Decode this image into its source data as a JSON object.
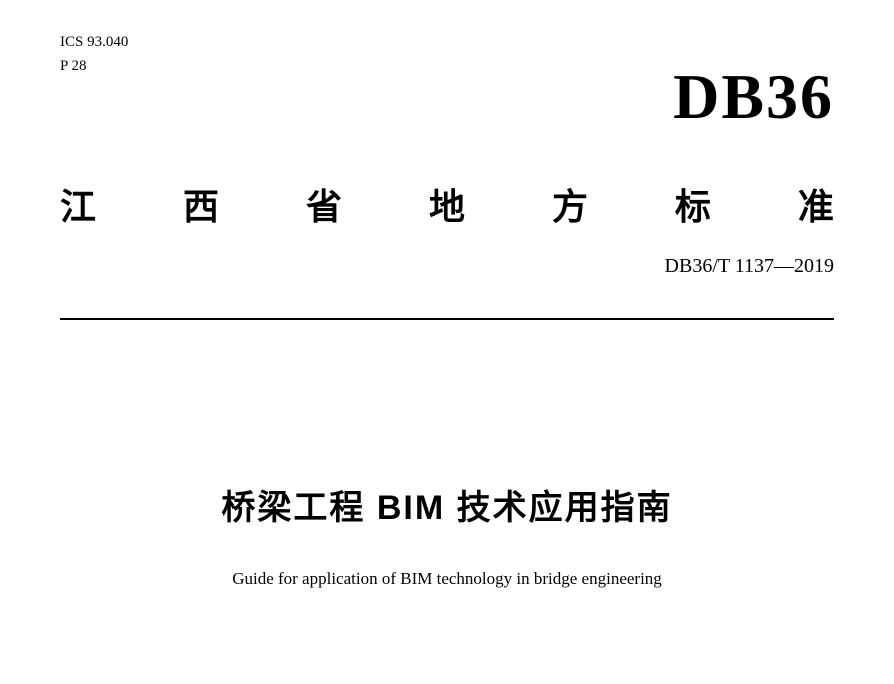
{
  "header": {
    "icsCode": "ICS 93.040",
    "pCode": "P 28"
  },
  "logo": {
    "text": "DB36"
  },
  "standardType": {
    "chars": [
      "江",
      "西",
      "省",
      "地",
      "方",
      "标",
      "准"
    ]
  },
  "standardNumber": "DB36/T 1137—2019",
  "mainTitle": "桥梁工程 BIM 技术应用指南",
  "englishTitle": "Guide for application of BIM technology in bridge engineering",
  "styling": {
    "backgroundColor": "#ffffff",
    "textColor": "#000000",
    "dividerColor": "#000000",
    "logoFontSize": 64,
    "standardTypeFontSize": 36,
    "mainTitleFontSize": 34,
    "englishTitleFontSize": 17,
    "headerCodeFontSize": 15,
    "standardNumberFontSize": 20
  }
}
